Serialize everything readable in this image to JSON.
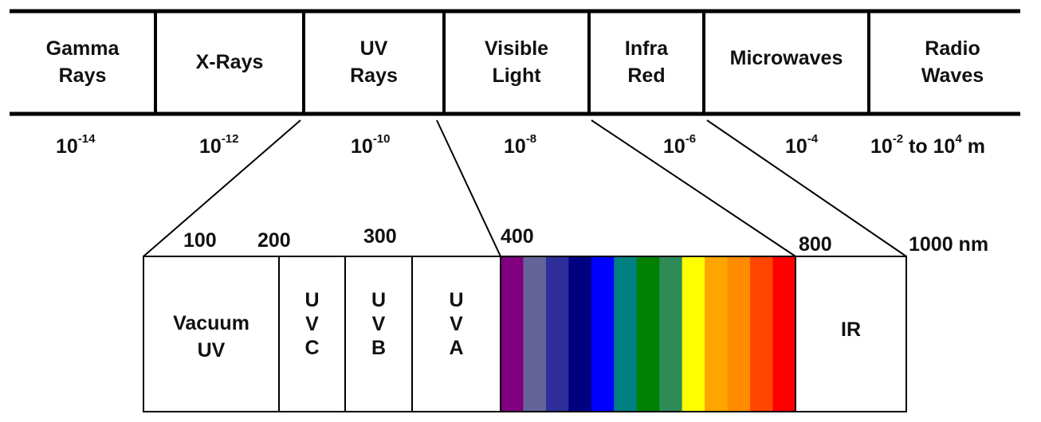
{
  "bands": [
    {
      "line1": "Gamma",
      "line2": "Rays"
    },
    {
      "line1": "X-Rays",
      "line2": ""
    },
    {
      "line1": "UV",
      "line2": "Rays"
    },
    {
      "line1": "Visible",
      "line2": "Light"
    },
    {
      "line1": "Infra",
      "line2": "Red"
    },
    {
      "line1": "Microwaves",
      "line2": ""
    },
    {
      "line1": "Radio",
      "line2": "Waves"
    }
  ],
  "wavelengths": [
    {
      "base": "10",
      "exp": "-14",
      "suffix": ""
    },
    {
      "base": "10",
      "exp": "-12",
      "suffix": ""
    },
    {
      "base": "10",
      "exp": "-10",
      "suffix": ""
    },
    {
      "base": "10",
      "exp": "-8",
      "suffix": ""
    },
    {
      "base": "10",
      "exp": "-6",
      "suffix": ""
    },
    {
      "base": "10",
      "exp": "-4",
      "suffix": ""
    },
    {
      "base": "10",
      "exp": "-2",
      "suffix": " to 10",
      "exp2": "4",
      "suffix2": " m"
    }
  ],
  "nm_labels": [
    "100",
    "200",
    "300",
    "400",
    "800",
    "1000 nm"
  ],
  "sub_bands": {
    "vacuum": {
      "line1": "Vacuum",
      "line2": "UV"
    },
    "uvc": [
      "U",
      "V",
      "C"
    ],
    "uvb": [
      "U",
      "V",
      "B"
    ],
    "uva": [
      "U",
      "V",
      "A"
    ],
    "ir": "IR"
  },
  "spectrum_colors": [
    "#800080",
    "#64639a",
    "#2e2e9a",
    "#000080",
    "#0000ff",
    "#008080",
    "#008000",
    "#2e8b57",
    "#ffff00",
    "#ffa500",
    "#ff8c00",
    "#ff4500",
    "#ff0000"
  ]
}
